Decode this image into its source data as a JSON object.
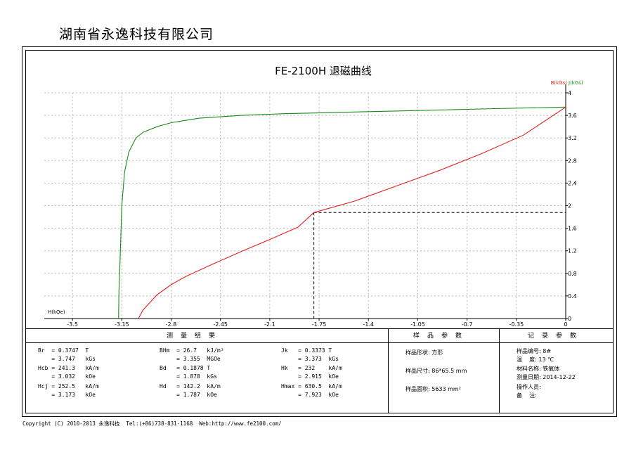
{
  "company": "湖南省永逸科技有限公司",
  "chart_data": {
    "type": "line",
    "title": "FE-2100H 退磁曲线",
    "xlabel": "H(kOe)",
    "ylabel_b": "B(kGs)",
    "ylabel_j": "J(kGs)",
    "xlim": [
      -3.7,
      0
    ],
    "ylim": [
      0,
      4
    ],
    "x_ticks": [
      "-3.5",
      "-3.15",
      "-2.8",
      "-2.45",
      "-2.1",
      "-1.75",
      "-1.4",
      "-1.05",
      "-0.7",
      "-0.35",
      "0"
    ],
    "x_tick_values": [
      -3.5,
      -3.15,
      -2.8,
      -2.45,
      -2.1,
      -1.75,
      -1.4,
      -1.05,
      -0.7,
      -0.35,
      0
    ],
    "y_ticks": [
      "0",
      "0.4",
      "0.8",
      "1.2",
      "1.6",
      "2",
      "2.4",
      "2.8",
      "3.2",
      "3.6",
      "4"
    ],
    "y_tick_values": [
      0,
      0.4,
      0.8,
      1.2,
      1.6,
      2.0,
      2.4,
      2.8,
      3.2,
      3.6,
      4.0
    ],
    "grid": true,
    "series": [
      {
        "name": "J(kGs)",
        "color": "#1a8a1a",
        "x": [
          -3.173,
          -3.17,
          -3.16,
          -3.15,
          -3.13,
          -3.1,
          -3.05,
          -3.0,
          -2.9,
          -2.8,
          -2.6,
          -2.3,
          -2.0,
          -1.5,
          -1.0,
          -0.5,
          0
        ],
        "y": [
          0.0,
          0.5,
          1.2,
          2.0,
          2.6,
          2.95,
          3.2,
          3.3,
          3.4,
          3.47,
          3.55,
          3.6,
          3.63,
          3.66,
          3.69,
          3.72,
          3.747
        ]
      },
      {
        "name": "B(kGs)",
        "color": "#e02020",
        "x": [
          -3.032,
          -3.0,
          -2.9,
          -2.8,
          -2.7,
          -2.5,
          -2.3,
          -2.1,
          -1.9,
          -1.787,
          -1.5,
          -1.2,
          -0.9,
          -0.6,
          -0.3,
          0
        ],
        "y": [
          0.0,
          0.15,
          0.42,
          0.6,
          0.74,
          0.97,
          1.19,
          1.4,
          1.62,
          1.878,
          2.08,
          2.35,
          2.62,
          2.92,
          3.25,
          3.747
        ]
      }
    ],
    "marker_point": {
      "x": -1.787,
      "y": 1.878
    }
  },
  "results": {
    "header_measure": "测量结果",
    "header_sample": "样品参数",
    "header_record": "记录参数",
    "col1": [
      "Br  = 0.3747  T",
      "    = 3.747   kGs",
      "Hcb = 241.3   kA/m",
      "    = 3.032   kOe",
      "Hcj = 252.5   kA/m",
      "    = 3.173   kOe"
    ],
    "col2": [
      "BHm  = 26.7   kJ/m³",
      "     = 3.355  MGOe",
      "Bd   = 0.1878 T",
      "     = 1.878  kGs",
      "Hd   = 142.2  kA/m",
      "     = 1.787  kOe"
    ],
    "col3": [
      "Jk   = 0.3373 T",
      "     = 3.373  kGs",
      "Hk   = 232    kA/m",
      "     = 2.915  kOe",
      "Hmax = 630.5  kA/m",
      "     = 7.923  kOe"
    ],
    "sample": [
      "样品形状: 方形",
      "样品尺寸: 86*65.5 mm",
      "样品面积: 5633 mm²"
    ],
    "record": [
      "样品编号: 8#",
      "温    度: 13 ℃",
      "材料名称: 铁氧体",
      "测量日期: 2014-12-22",
      "操作人员:",
      "备    注:"
    ]
  },
  "footer": "Copyright (C) 2010-2013 永逸科技  Tel:(+86)738-831-1168  Web:http://www.fe2100.com/"
}
